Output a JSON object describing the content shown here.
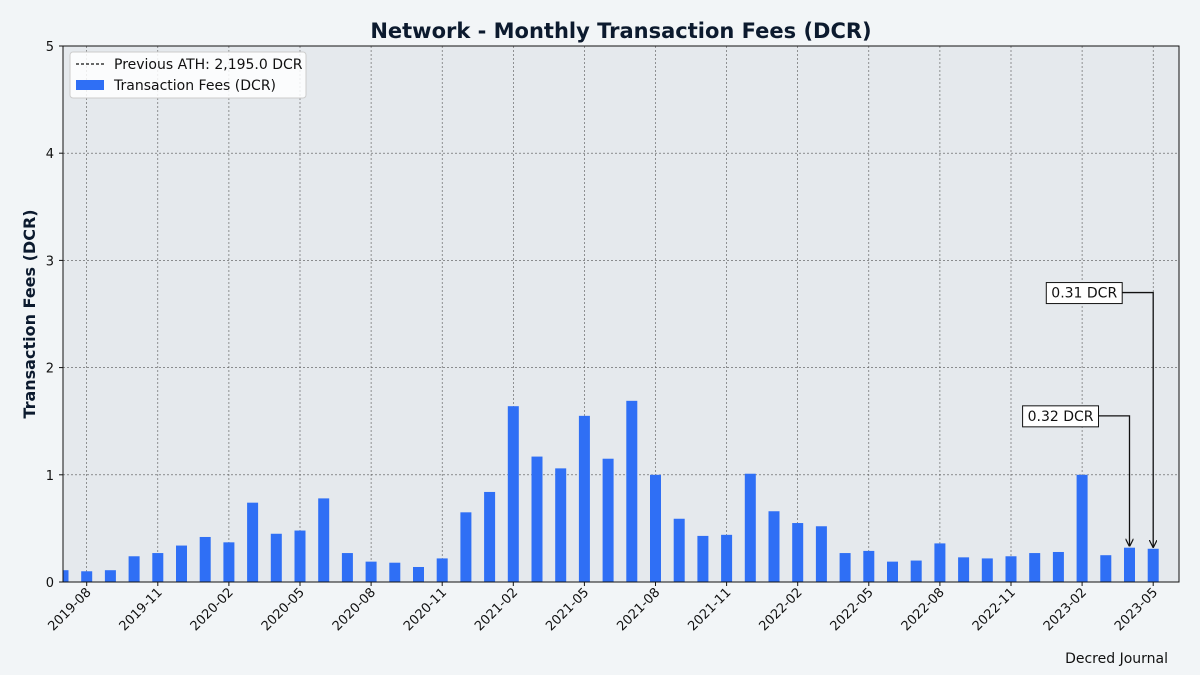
{
  "chart_data": {
    "type": "bar",
    "title": "Network - Monthly Transaction Fees (DCR)",
    "xlabel": "",
    "ylabel": "Transaction Fees (DCR)",
    "ylim": [
      0,
      5
    ],
    "yticks": [
      "0",
      "1",
      "2",
      "3",
      "4",
      "5"
    ],
    "grid": true,
    "legend_position": "top-left",
    "xtick_labels": [
      "2019-08",
      "2019-11",
      "2020-02",
      "2020-05",
      "2020-08",
      "2020-11",
      "2021-02",
      "2021-05",
      "2021-08",
      "2021-11",
      "2022-02",
      "2022-05",
      "2022-08",
      "2022-11",
      "2023-02",
      "2023-05"
    ],
    "categories": [
      "2019-07",
      "2019-08",
      "2019-09",
      "2019-10",
      "2019-11",
      "2019-12",
      "2020-01",
      "2020-02",
      "2020-03",
      "2020-04",
      "2020-05",
      "2020-06",
      "2020-07",
      "2020-08",
      "2020-09",
      "2020-10",
      "2020-11",
      "2020-12",
      "2021-01",
      "2021-02",
      "2021-03",
      "2021-04",
      "2021-05",
      "2021-06",
      "2021-07",
      "2021-08",
      "2021-09",
      "2021-10",
      "2021-11",
      "2021-12",
      "2022-01",
      "2022-02",
      "2022-03",
      "2022-04",
      "2022-05",
      "2022-06",
      "2022-07",
      "2022-08",
      "2022-09",
      "2022-10",
      "2022-11",
      "2022-12",
      "2023-01",
      "2023-02",
      "2023-03",
      "2023-04",
      "2023-05"
    ],
    "series": [
      {
        "name": "Transaction Fees (DCR)",
        "color": "#2f6ff5",
        "values": [
          0.11,
          0.1,
          0.11,
          0.24,
          0.27,
          0.34,
          0.42,
          0.37,
          0.74,
          0.45,
          0.48,
          0.78,
          0.27,
          0.19,
          0.18,
          0.14,
          0.22,
          0.65,
          0.84,
          1.64,
          1.17,
          1.06,
          1.55,
          1.15,
          1.69,
          1.0,
          0.59,
          0.43,
          0.44,
          1.01,
          0.66,
          0.55,
          0.52,
          0.27,
          0.29,
          0.19,
          0.2,
          0.36,
          0.23,
          0.22,
          0.24,
          0.27,
          0.28,
          1.0,
          0.25,
          0.32,
          0.31
        ]
      }
    ],
    "reference_lines": [
      {
        "name": "Previous ATH: 2,195.0 DCR",
        "value": 2195.0,
        "style": "dashed",
        "color": "#111111"
      }
    ],
    "annotations": [
      {
        "text": "0.32 DCR",
        "category": "2023-04",
        "value": 0.32
      },
      {
        "text": "0.31 DCR",
        "category": "2023-05",
        "value": 0.31
      }
    ],
    "source": "Decred Journal"
  },
  "colors": {
    "page_background": "#f2f5f7",
    "plot_background": "#e5e9ed",
    "bar": "#2f6ff5",
    "grid": "#555555",
    "text": "#0c1a2e"
  }
}
